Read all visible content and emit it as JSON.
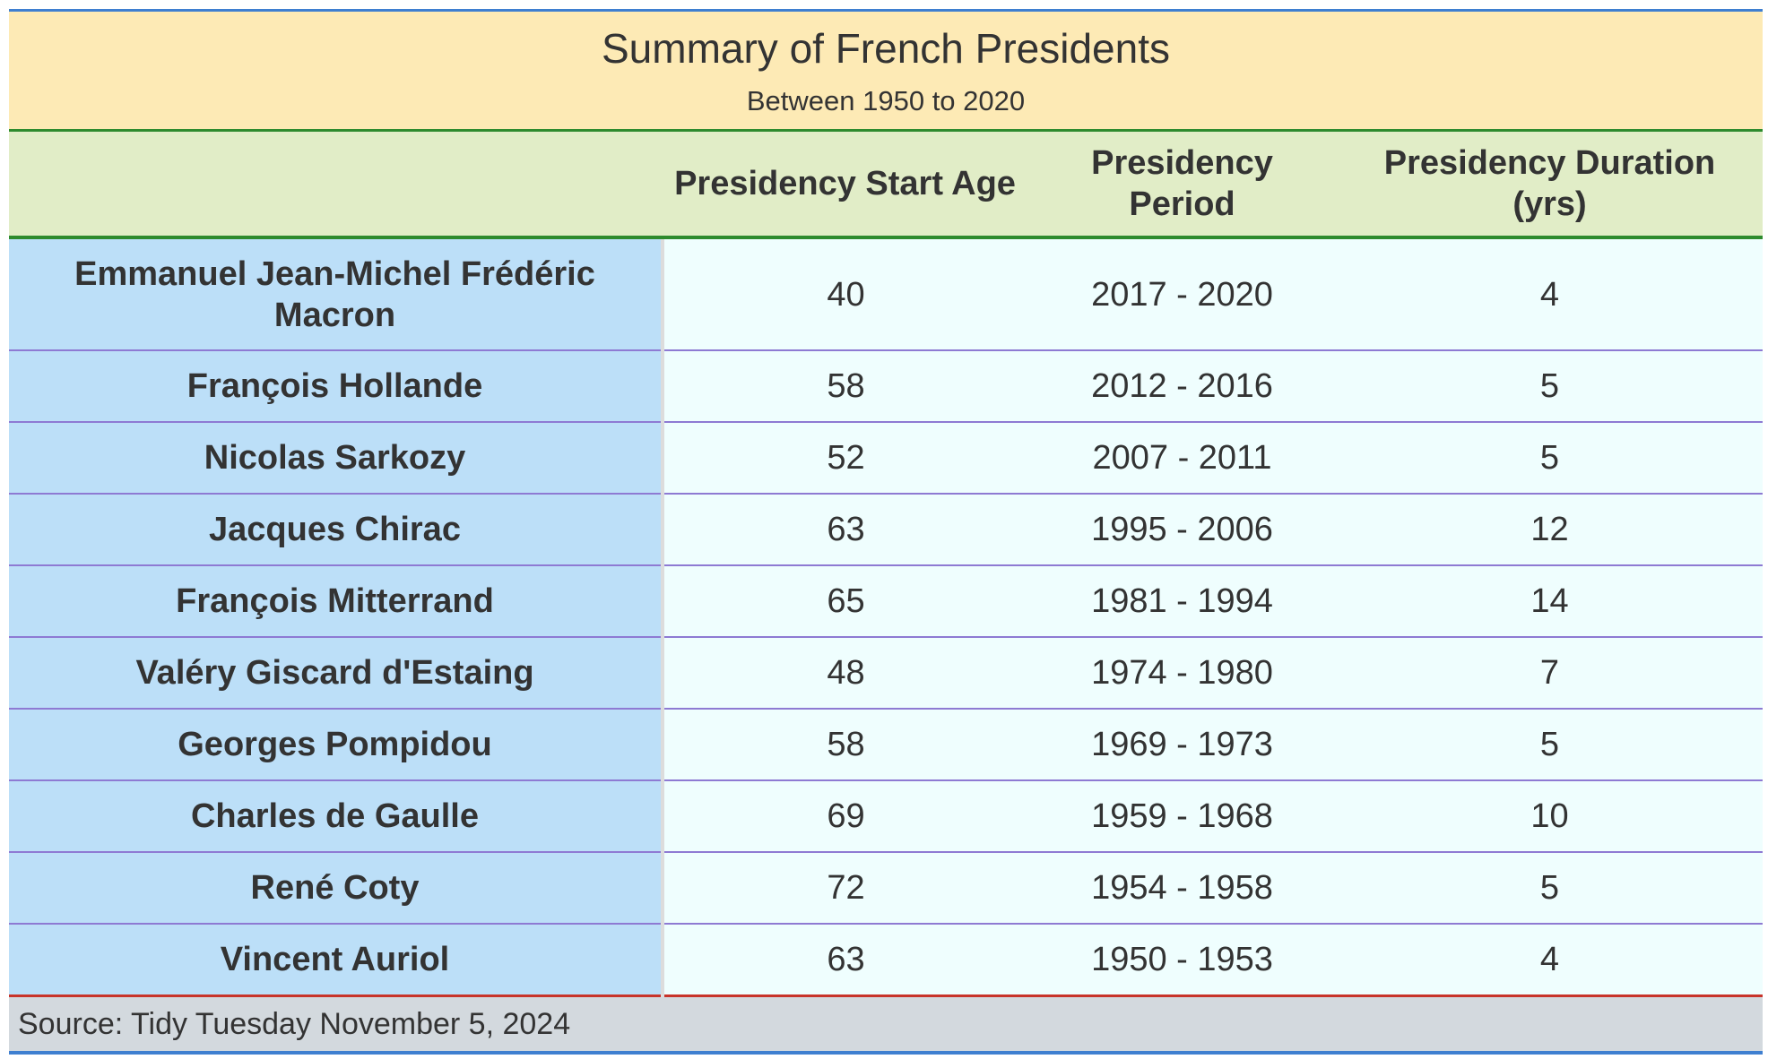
{
  "title": "Summary of French Presidents",
  "subtitle": "Between 1950 to 2020",
  "columns": [
    "",
    "Presidency Start Age",
    "Presidency Period",
    "Presidency Duration (yrs)"
  ],
  "rows": [
    {
      "name": "Emmanuel Jean-Michel Frédéric Macron",
      "age": "40",
      "period": "2017 - 2020",
      "duration": "4"
    },
    {
      "name": "François Hollande",
      "age": "58",
      "period": "2012 - 2016",
      "duration": "5"
    },
    {
      "name": "Nicolas Sarkozy",
      "age": "52",
      "period": "2007 - 2011",
      "duration": "5"
    },
    {
      "name": "Jacques Chirac",
      "age": "63",
      "period": "1995 - 2006",
      "duration": "12"
    },
    {
      "name": "François Mitterrand",
      "age": "65",
      "period": "1981 - 1994",
      "duration": "14"
    },
    {
      "name": "Valéry Giscard d'Estaing",
      "age": "48",
      "period": "1974 - 1980",
      "duration": "7"
    },
    {
      "name": "Georges Pompidou",
      "age": "58",
      "period": "1969 - 1973",
      "duration": "5"
    },
    {
      "name": "Charles de Gaulle",
      "age": "69",
      "period": "1959 - 1968",
      "duration": "10"
    },
    {
      "name": "René Coty",
      "age": "72",
      "period": "1954 - 1958",
      "duration": "5"
    },
    {
      "name": "Vincent Auriol",
      "age": "63",
      "period": "1950 - 1953",
      "duration": "4"
    }
  ],
  "source": "Source: Tidy Tuesday November 5, 2024",
  "colors": {
    "title_bg": "#fdeab5",
    "header_bg": "#e1edc7",
    "name_col_bg": "#bcdff8",
    "body_bg": "#effefe",
    "footer_bg": "#d3d9de",
    "header_rule": "#2e8b2e",
    "row_rule": "#8e7ad3",
    "bottom_rule": "#c8342a",
    "outer_rule": "#3f7fd0"
  },
  "chart_data": {
    "type": "table",
    "title": "Summary of French Presidents",
    "subtitle": "Between 1950 to 2020",
    "columns": [
      "",
      "Presidency Start Age",
      "Presidency Period",
      "Presidency Duration (yrs)"
    ],
    "rows": [
      [
        "Emmanuel Jean-Michel Frédéric Macron",
        40,
        "2017 - 2020",
        4
      ],
      [
        "François Hollande",
        58,
        "2012 - 2016",
        5
      ],
      [
        "Nicolas Sarkozy",
        52,
        "2007 - 2011",
        5
      ],
      [
        "Jacques Chirac",
        63,
        "1995 - 2006",
        12
      ],
      [
        "François Mitterrand",
        65,
        "1981 - 1994",
        14
      ],
      [
        "Valéry Giscard d'Estaing",
        48,
        "1974 - 1980",
        7
      ],
      [
        "Georges Pompidou",
        58,
        "1969 - 1973",
        5
      ],
      [
        "Charles de Gaulle",
        69,
        "1959 - 1968",
        10
      ],
      [
        "René Coty",
        72,
        "1954 - 1958",
        5
      ],
      [
        "Vincent Auriol",
        63,
        "1950 - 1953",
        4
      ]
    ],
    "source": "Source: Tidy Tuesday November 5, 2024"
  }
}
